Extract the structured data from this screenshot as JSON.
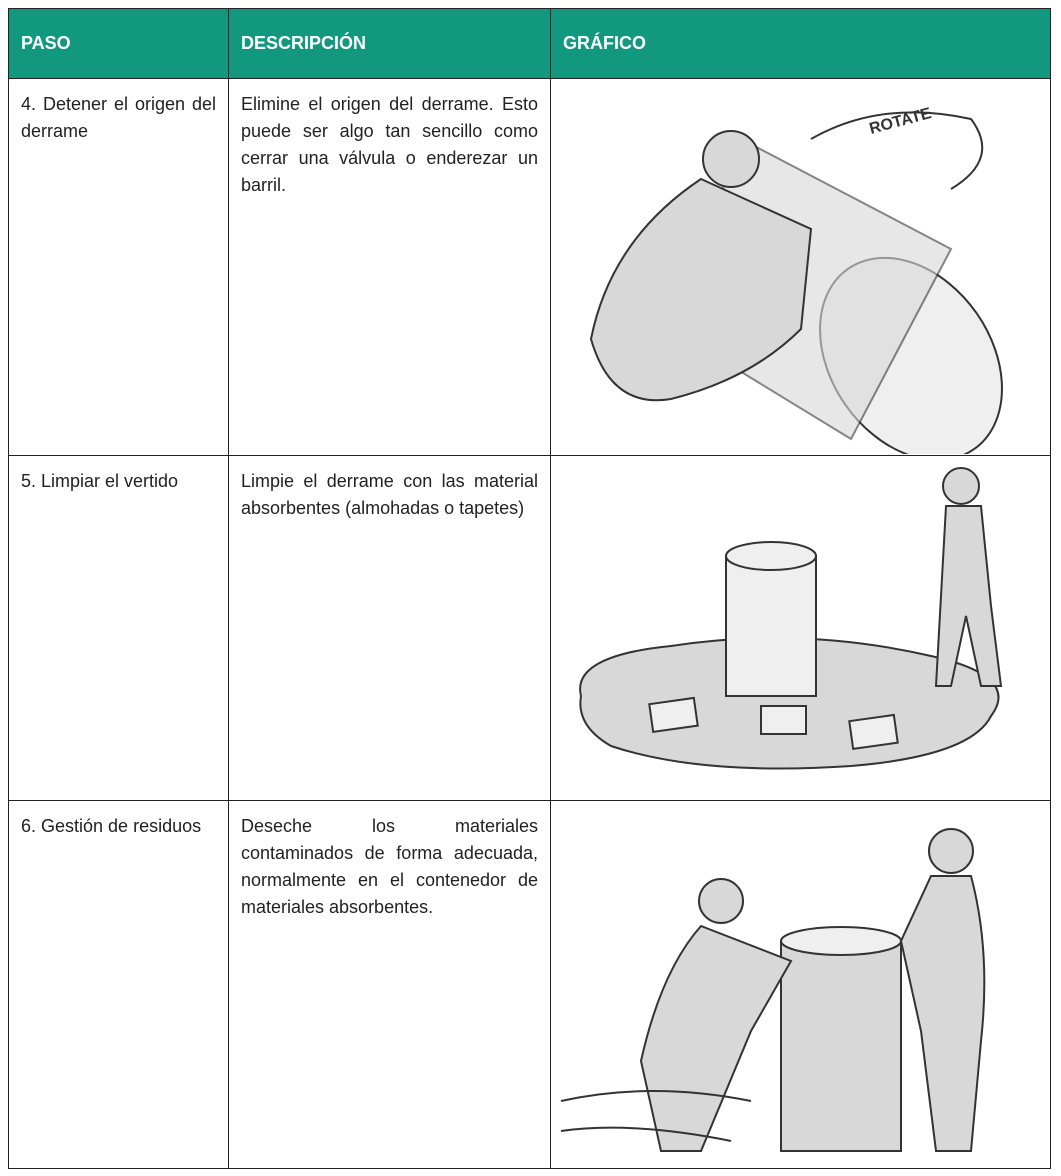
{
  "table": {
    "header": [
      "PASO",
      "DESCRIPCIÓN",
      "GRÁFICO"
    ],
    "rows": [
      [
        "4. Detener el origen del derrame",
        "Elimine el origen del derrame. Esto puede ser algo tan sencillo como cerrar una válvula o enderezar un barril."
      ],
      [
        "5. Limpiar el vertido",
        "Limpie el derrame con las material absorbentes (almohadas o tapetes)"
      ],
      [
        "6. Gestión de residuos",
        "Deseche los materiales contaminados de forma adecuada, normalmente en el contenedor de materiales absorbentes."
      ]
    ]
  }
}
